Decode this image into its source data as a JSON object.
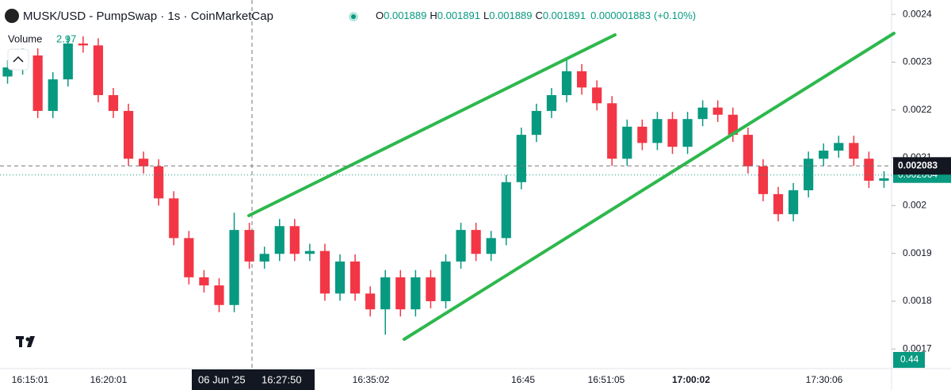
{
  "header": {
    "title": "MUSK/USD - PumpSwap · 1s · CoinMarketCap",
    "ohlc": [
      {
        "label": "O",
        "value": 0.001889
      },
      {
        "label": "H",
        "value": 0.001891
      },
      {
        "label": "L",
        "value": 0.001889
      },
      {
        "label": "C",
        "value": 0.001891
      }
    ],
    "change": 1.883e-06,
    "change_pct": "(+0.10%)",
    "volume_label": "Volume",
    "volume_value": 2.97
  },
  "chart_data": {
    "type": "candlestick",
    "up_color": "#089981",
    "down_color": "#f23645",
    "open": [
      0.00227,
      0.002289,
      0.002314,
      0.002198,
      0.002264,
      0.002339,
      0.002335,
      0.002231,
      0.002198,
      0.002098,
      0.002082,
      0.002015,
      0.001932,
      0.00185,
      0.001833,
      0.001792,
      0.001949,
      0.001883,
      0.001899,
      0.001957,
      0.001899,
      0.001905,
      0.001816,
      0.001883,
      0.001816,
      0.001783,
      0.00185,
      0.001783,
      0.00185,
      0.0018,
      0.001883,
      0.001949,
      0.001899,
      0.001932,
      0.002049,
      0.002148,
      0.002198,
      0.002231,
      0.002281,
      0.002247,
      0.002214,
      0.002098,
      0.002165,
      0.002131,
      0.002181,
      0.002123,
      0.002181,
      0.002205,
      0.00219,
      0.002148,
      0.002082,
      0.002024,
      0.001982,
      0.002032,
      0.002098,
      0.002115,
      0.002131,
      0.002098,
      0.002052
    ],
    "high": [
      0.002304,
      0.002329,
      0.002329,
      0.002279,
      0.002354,
      0.002354,
      0.00235,
      0.002246,
      0.002213,
      0.002113,
      0.002097,
      0.00203,
      0.001947,
      0.001865,
      0.001848,
      0.001985,
      0.001964,
      0.001914,
      0.001972,
      0.001972,
      0.00192,
      0.00192,
      0.001898,
      0.001898,
      0.001831,
      0.001865,
      0.001865,
      0.001865,
      0.001865,
      0.001898,
      0.001964,
      0.001964,
      0.001947,
      0.002064,
      0.002163,
      0.002213,
      0.002246,
      0.00231,
      0.002296,
      0.002262,
      0.002229,
      0.00218,
      0.00218,
      0.002196,
      0.002196,
      0.002196,
      0.00222,
      0.00222,
      0.002205,
      0.002163,
      0.002097,
      0.002039,
      0.002047,
      0.002113,
      0.00213,
      0.002146,
      0.002146,
      0.002113,
      0.002072
    ],
    "low": [
      0.002255,
      0.002274,
      0.002183,
      0.002183,
      0.002249,
      0.00232,
      0.002216,
      0.002183,
      0.002083,
      0.002067,
      0.002,
      0.001917,
      0.001835,
      0.001818,
      0.001777,
      0.001777,
      0.001868,
      0.001868,
      0.001884,
      0.001884,
      0.001884,
      0.001801,
      0.001801,
      0.001801,
      0.001768,
      0.00173,
      0.001768,
      0.001768,
      0.001785,
      0.001785,
      0.001868,
      0.001884,
      0.001884,
      0.001917,
      0.002034,
      0.002133,
      0.002183,
      0.002216,
      0.002232,
      0.002199,
      0.002083,
      0.002083,
      0.002116,
      0.002116,
      0.002108,
      0.002108,
      0.002166,
      0.002175,
      0.002133,
      0.002067,
      0.002009,
      0.001967,
      0.001967,
      0.002017,
      0.002083,
      0.0021,
      0.002083,
      0.002037,
      0.002037
    ],
    "close": [
      0.002289,
      0.002314,
      0.002198,
      0.002264,
      0.002339,
      0.002335,
      0.002231,
      0.002198,
      0.002098,
      0.002082,
      0.002015,
      0.001932,
      0.00185,
      0.001833,
      0.001792,
      0.001949,
      0.001883,
      0.001899,
      0.001957,
      0.001899,
      0.001905,
      0.001816,
      0.001883,
      0.001816,
      0.001783,
      0.00185,
      0.001783,
      0.00185,
      0.0018,
      0.001883,
      0.001949,
      0.001899,
      0.001932,
      0.002049,
      0.002148,
      0.002198,
      0.002231,
      0.002281,
      0.002247,
      0.002214,
      0.002098,
      0.002165,
      0.002131,
      0.002181,
      0.002123,
      0.002181,
      0.002205,
      0.00219,
      0.002148,
      0.002082,
      0.002024,
      0.001982,
      0.002032,
      0.002098,
      0.002115,
      0.002131,
      0.002098,
      0.002052,
      0.002057
    ],
    "ylim": [
      0.001659,
      0.00243
    ],
    "yticks": [
      0.0017,
      0.0018,
      0.0019,
      0.002,
      0.0021,
      0.0022,
      0.0023,
      0.0024
    ],
    "time_labels": [
      "16:15:01",
      "16:20:01",
      "16:35:02",
      "16:45",
      "16:51:05",
      "17:00:02",
      "17:30:06"
    ],
    "crosshair": {
      "date": "06 Jun '25",
      "time": "16:27:50",
      "price": 0.002083
    },
    "last_price": 0.002064,
    "volume_axis_label": 0.44
  }
}
